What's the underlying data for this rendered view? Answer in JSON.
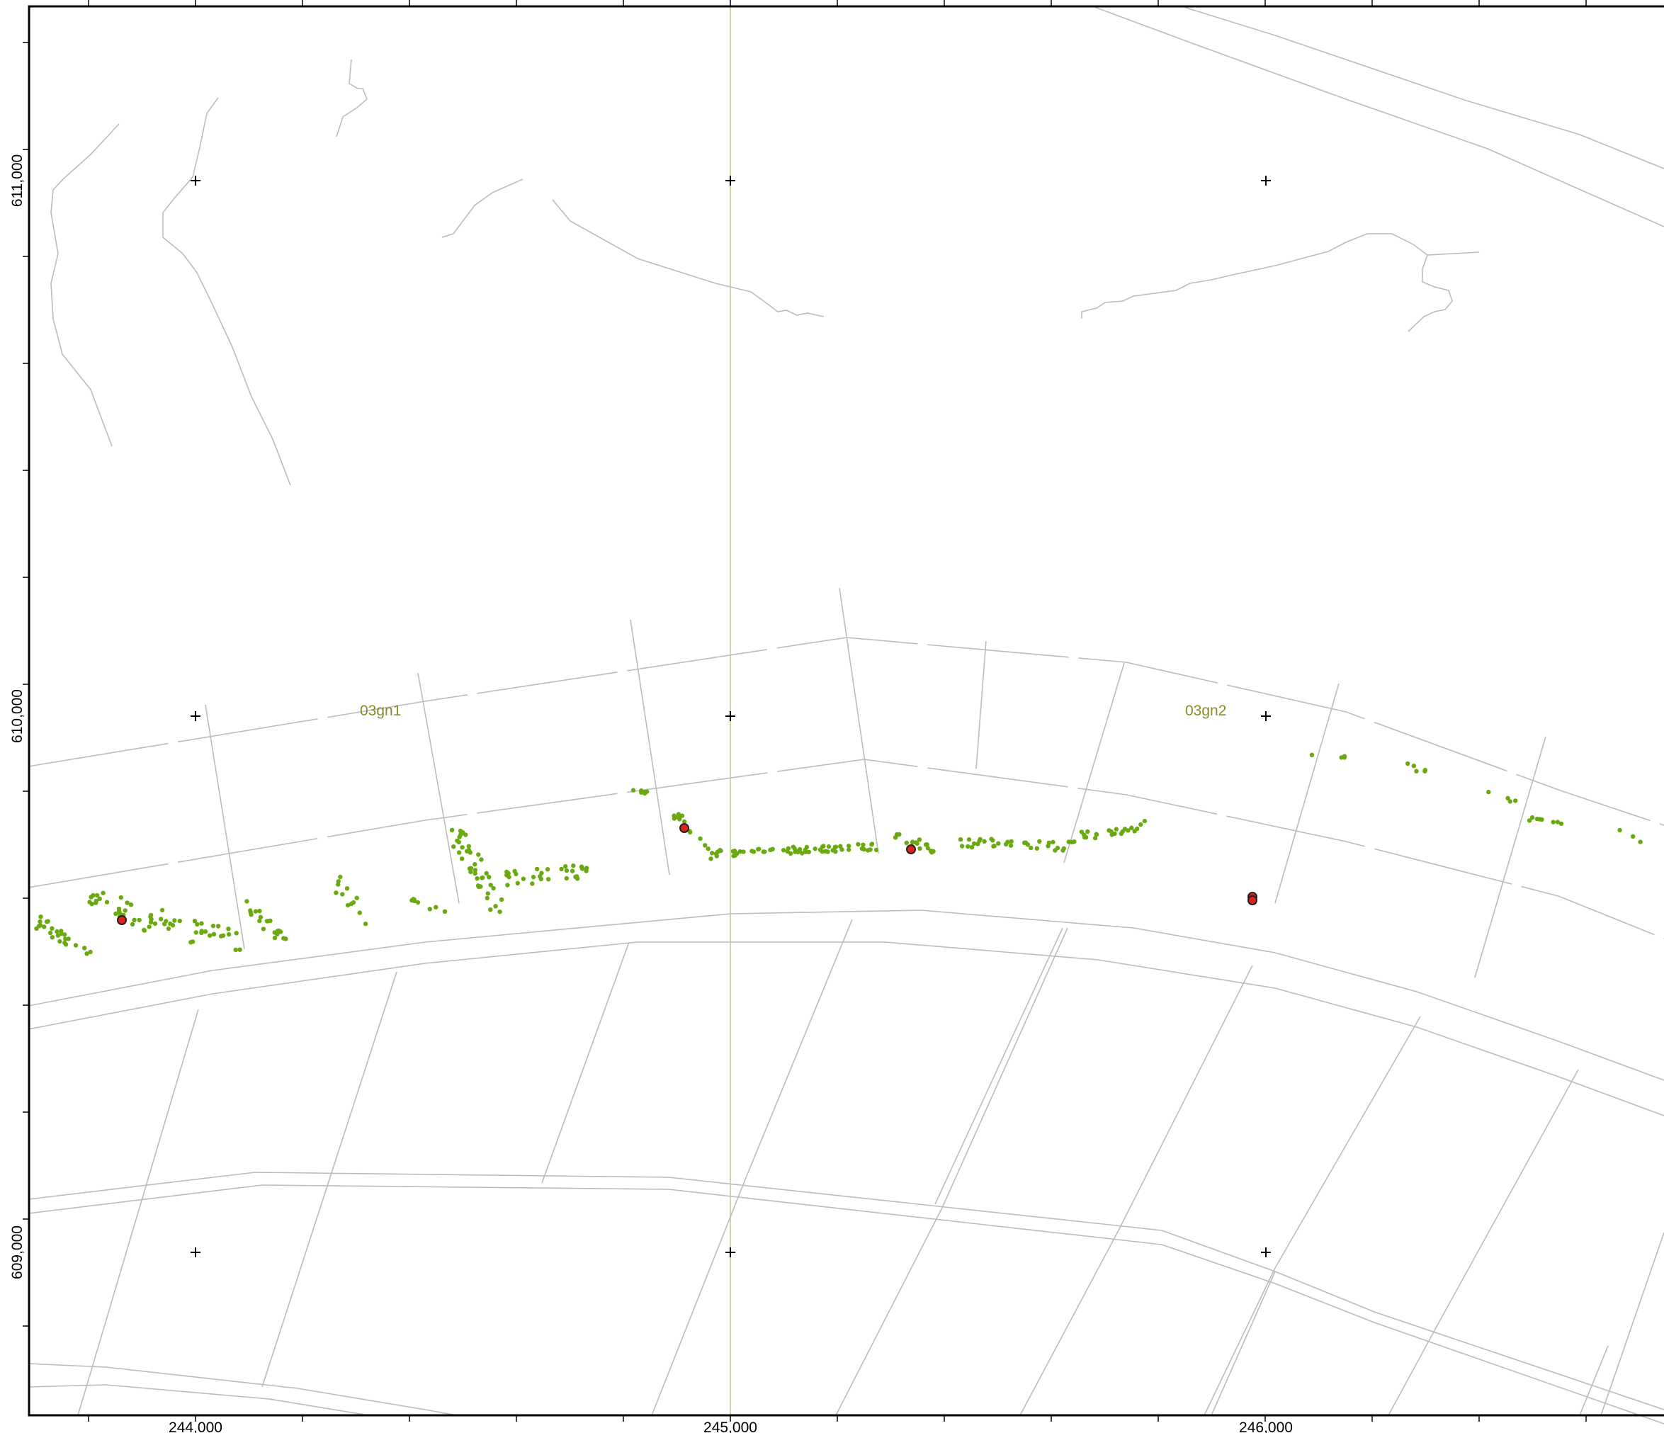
{
  "map": {
    "x_axis_labels": [
      "244,000",
      "245,000",
      "246,000"
    ],
    "y_axis_labels": [
      "611,000",
      "610,000",
      "609,000"
    ],
    "zone_labels": [
      "03gn1",
      "03gn2"
    ],
    "colors": {
      "frame": "#000000",
      "lines": "#bcbcbc",
      "meridian": "#c8dca0",
      "points": "#6aaa10",
      "highlight_fill": "#e0201c",
      "highlight_stroke": "#202020",
      "zone_text": "#8a8a2a"
    },
    "layers": [
      {
        "name": "survey-points",
        "color": "#6aaa10"
      },
      {
        "name": "highlight-points",
        "count": 5,
        "color": "#e0201c"
      }
    ]
  }
}
